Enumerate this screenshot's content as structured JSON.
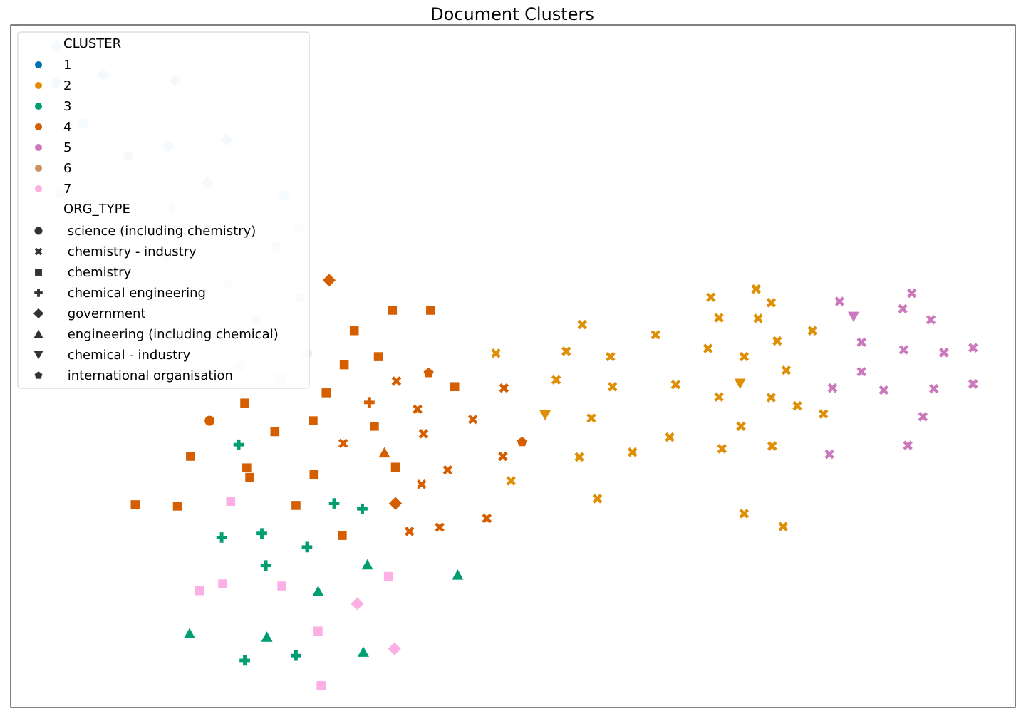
{
  "chart_data": {
    "type": "scatter",
    "title": "Document Clusters",
    "xlabel": "",
    "ylabel": "",
    "axes_ticks_visible": false,
    "grid": false,
    "legend_placement": "top-left",
    "xlim": [
      0,
      1000
    ],
    "ylim": [
      0,
      1000
    ],
    "legend": {
      "hue_title": "CLUSTER",
      "hue_entries": [
        {
          "label": "1",
          "color": "#0173b2"
        },
        {
          "label": "2",
          "color": "#de8f05"
        },
        {
          "label": "3",
          "color": "#029e73"
        },
        {
          "label": "4",
          "color": "#d55e00"
        },
        {
          "label": "5",
          "color": "#cc78bc"
        },
        {
          "label": "6",
          "color": "#ca9161"
        },
        {
          "label": "7",
          "color": "#fbafe4"
        }
      ],
      "style_title": "ORG_TYPE",
      "style_entries": [
        {
          "label": " science (including chemistry)",
          "marker": "circle"
        },
        {
          "label": " chemistry - industry",
          "marker": "x"
        },
        {
          "label": " chemistry",
          "marker": "square"
        },
        {
          "label": " chemical engineering",
          "marker": "plus"
        },
        {
          "label": " government",
          "marker": "diamond"
        },
        {
          "label": " engineering (including chemical)",
          "marker": "triangle-up"
        },
        {
          "label": " chemical - industry",
          "marker": "triangle-down"
        },
        {
          "label": " international organisation",
          "marker": "pentagon"
        }
      ]
    },
    "series": [
      {
        "name": "1",
        "color": "#0173b2",
        "faded": true,
        "points": [
          {
            "x": 46,
            "y": 969,
            "m": "diamond"
          },
          {
            "x": 92,
            "y": 927,
            "m": "diamond"
          },
          {
            "x": 164,
            "y": 919,
            "m": "diamond"
          },
          {
            "x": 215,
            "y": 832,
            "m": "diamond"
          },
          {
            "x": 196,
            "y": 768,
            "m": "diamond"
          },
          {
            "x": 45,
            "y": 915,
            "m": "circle"
          },
          {
            "x": 72,
            "y": 856,
            "m": "circle"
          },
          {
            "x": 117,
            "y": 808,
            "m": "circle"
          },
          {
            "x": 157,
            "y": 822,
            "m": "circle"
          },
          {
            "x": 272,
            "y": 750,
            "m": "circle"
          }
        ]
      },
      {
        "name": "6",
        "color": "#ca9161",
        "faded": true,
        "points": [
          {
            "x": 50,
            "y": 753,
            "m": "circle"
          },
          {
            "x": 287,
            "y": 703,
            "m": "circle"
          },
          {
            "x": 264,
            "y": 675,
            "m": "circle"
          },
          {
            "x": 155,
            "y": 661,
            "m": "circle"
          },
          {
            "x": 216,
            "y": 620,
            "m": "circle"
          },
          {
            "x": 295,
            "y": 519,
            "m": "circle"
          },
          {
            "x": 62,
            "y": 605,
            "m": "circle"
          },
          {
            "x": 94,
            "y": 673,
            "m": "circle"
          },
          {
            "x": 160,
            "y": 731,
            "m": "diamond"
          },
          {
            "x": 208,
            "y": 548,
            "m": "diamond"
          },
          {
            "x": 288,
            "y": 600,
            "m": "square"
          },
          {
            "x": 244,
            "y": 567,
            "m": "square"
          },
          {
            "x": 228,
            "y": 500,
            "m": "square"
          },
          {
            "x": 269,
            "y": 482,
            "m": "square"
          },
          {
            "x": 186,
            "y": 491,
            "m": "square"
          },
          {
            "x": 203,
            "y": 693,
            "m": "x"
          },
          {
            "x": 168,
            "y": 543,
            "m": "x"
          }
        ]
      },
      {
        "name": "4",
        "color": "#d55e00",
        "faded": false,
        "points": [
          {
            "x": 317,
            "y": 626,
            "m": "diamond"
          },
          {
            "x": 383,
            "y": 299,
            "m": "diamond"
          },
          {
            "x": 198,
            "y": 420,
            "m": "circle"
          },
          {
            "x": 416,
            "y": 490,
            "m": "pentagon"
          },
          {
            "x": 509,
            "y": 389,
            "m": "pentagon"
          },
          {
            "x": 372,
            "y": 373,
            "m": "triangle-up"
          },
          {
            "x": 357,
            "y": 447,
            "m": "plus"
          },
          {
            "x": 380,
            "y": 582,
            "m": "square"
          },
          {
            "x": 418,
            "y": 582,
            "m": "square"
          },
          {
            "x": 342,
            "y": 552,
            "m": "square"
          },
          {
            "x": 366,
            "y": 514,
            "m": "square"
          },
          {
            "x": 332,
            "y": 502,
            "m": "square"
          },
          {
            "x": 442,
            "y": 470,
            "m": "square"
          },
          {
            "x": 314,
            "y": 461,
            "m": "square"
          },
          {
            "x": 233,
            "y": 446,
            "m": "square"
          },
          {
            "x": 301,
            "y": 420,
            "m": "square"
          },
          {
            "x": 362,
            "y": 412,
            "m": "square"
          },
          {
            "x": 263,
            "y": 404,
            "m": "square"
          },
          {
            "x": 179,
            "y": 368,
            "m": "square"
          },
          {
            "x": 235,
            "y": 351,
            "m": "square"
          },
          {
            "x": 302,
            "y": 341,
            "m": "square"
          },
          {
            "x": 383,
            "y": 352,
            "m": "square"
          },
          {
            "x": 238,
            "y": 337,
            "m": "square"
          },
          {
            "x": 124,
            "y": 297,
            "m": "square"
          },
          {
            "x": 166,
            "y": 295,
            "m": "square"
          },
          {
            "x": 284,
            "y": 296,
            "m": "square"
          },
          {
            "x": 330,
            "y": 252,
            "m": "square"
          },
          {
            "x": 384,
            "y": 478,
            "m": "x"
          },
          {
            "x": 405,
            "y": 437,
            "m": "x"
          },
          {
            "x": 491,
            "y": 468,
            "m": "x"
          },
          {
            "x": 460,
            "y": 422,
            "m": "x"
          },
          {
            "x": 411,
            "y": 401,
            "m": "x"
          },
          {
            "x": 331,
            "y": 387,
            "m": "x"
          },
          {
            "x": 490,
            "y": 368,
            "m": "x"
          },
          {
            "x": 435,
            "y": 348,
            "m": "x"
          },
          {
            "x": 409,
            "y": 327,
            "m": "x"
          },
          {
            "x": 474,
            "y": 277,
            "m": "x"
          },
          {
            "x": 427,
            "y": 264,
            "m": "x"
          },
          {
            "x": 397,
            "y": 258,
            "m": "x"
          }
        ]
      },
      {
        "name": "2",
        "color": "#de8f05",
        "faded": false,
        "points": [
          {
            "x": 532,
            "y": 429,
            "m": "triangle-down"
          },
          {
            "x": 726,
            "y": 475,
            "m": "triangle-down"
          },
          {
            "x": 697,
            "y": 601,
            "m": "x"
          },
          {
            "x": 742,
            "y": 613,
            "m": "x"
          },
          {
            "x": 757,
            "y": 593,
            "m": "x"
          },
          {
            "x": 705,
            "y": 571,
            "m": "x"
          },
          {
            "x": 744,
            "y": 570,
            "m": "x"
          },
          {
            "x": 569,
            "y": 561,
            "m": "x"
          },
          {
            "x": 642,
            "y": 546,
            "m": "x"
          },
          {
            "x": 798,
            "y": 552,
            "m": "x"
          },
          {
            "x": 763,
            "y": 537,
            "m": "x"
          },
          {
            "x": 694,
            "y": 526,
            "m": "x"
          },
          {
            "x": 553,
            "y": 522,
            "m": "x"
          },
          {
            "x": 597,
            "y": 514,
            "m": "x"
          },
          {
            "x": 483,
            "y": 519,
            "m": "x"
          },
          {
            "x": 730,
            "y": 514,
            "m": "x"
          },
          {
            "x": 772,
            "y": 494,
            "m": "x"
          },
          {
            "x": 543,
            "y": 480,
            "m": "x"
          },
          {
            "x": 599,
            "y": 470,
            "m": "x"
          },
          {
            "x": 662,
            "y": 473,
            "m": "x"
          },
          {
            "x": 705,
            "y": 455,
            "m": "x"
          },
          {
            "x": 757,
            "y": 454,
            "m": "x"
          },
          {
            "x": 783,
            "y": 442,
            "m": "x"
          },
          {
            "x": 809,
            "y": 430,
            "m": "x"
          },
          {
            "x": 578,
            "y": 424,
            "m": "x"
          },
          {
            "x": 727,
            "y": 412,
            "m": "x"
          },
          {
            "x": 656,
            "y": 396,
            "m": "x"
          },
          {
            "x": 619,
            "y": 374,
            "m": "x"
          },
          {
            "x": 566,
            "y": 367,
            "m": "x"
          },
          {
            "x": 708,
            "y": 379,
            "m": "x"
          },
          {
            "x": 758,
            "y": 383,
            "m": "x"
          },
          {
            "x": 498,
            "y": 332,
            "m": "x"
          },
          {
            "x": 584,
            "y": 306,
            "m": "x"
          },
          {
            "x": 730,
            "y": 284,
            "m": "x"
          },
          {
            "x": 769,
            "y": 265,
            "m": "x"
          }
        ]
      },
      {
        "name": "5",
        "color": "#cc78bc",
        "faded": false,
        "points": [
          {
            "x": 839,
            "y": 573,
            "m": "triangle-down"
          },
          {
            "x": 825,
            "y": 595,
            "m": "x"
          },
          {
            "x": 897,
            "y": 607,
            "m": "x"
          },
          {
            "x": 888,
            "y": 584,
            "m": "x"
          },
          {
            "x": 916,
            "y": 568,
            "m": "x"
          },
          {
            "x": 847,
            "y": 535,
            "m": "x"
          },
          {
            "x": 889,
            "y": 524,
            "m": "x"
          },
          {
            "x": 929,
            "y": 520,
            "m": "x"
          },
          {
            "x": 958,
            "y": 527,
            "m": "x"
          },
          {
            "x": 847,
            "y": 492,
            "m": "x"
          },
          {
            "x": 818,
            "y": 468,
            "m": "x"
          },
          {
            "x": 869,
            "y": 465,
            "m": "x"
          },
          {
            "x": 919,
            "y": 467,
            "m": "x"
          },
          {
            "x": 958,
            "y": 474,
            "m": "x"
          },
          {
            "x": 908,
            "y": 426,
            "m": "x"
          },
          {
            "x": 815,
            "y": 371,
            "m": "x"
          },
          {
            "x": 893,
            "y": 384,
            "m": "x"
          }
        ]
      },
      {
        "name": "3",
        "color": "#029e73",
        "faded": false,
        "points": [
          {
            "x": 227,
            "y": 385,
            "m": "plus"
          },
          {
            "x": 322,
            "y": 299,
            "m": "plus"
          },
          {
            "x": 350,
            "y": 291,
            "m": "plus"
          },
          {
            "x": 210,
            "y": 249,
            "m": "plus"
          },
          {
            "x": 250,
            "y": 255,
            "m": "plus"
          },
          {
            "x": 295,
            "y": 235,
            "m": "plus"
          },
          {
            "x": 254,
            "y": 208,
            "m": "plus"
          },
          {
            "x": 233,
            "y": 69,
            "m": "plus"
          },
          {
            "x": 284,
            "y": 76,
            "m": "plus"
          },
          {
            "x": 355,
            "y": 209,
            "m": "triangle-up"
          },
          {
            "x": 445,
            "y": 194,
            "m": "triangle-up"
          },
          {
            "x": 306,
            "y": 170,
            "m": "triangle-up"
          },
          {
            "x": 178,
            "y": 108,
            "m": "triangle-up"
          },
          {
            "x": 255,
            "y": 103,
            "m": "triangle-up"
          },
          {
            "x": 351,
            "y": 81,
            "m": "triangle-up"
          }
        ]
      },
      {
        "name": "7",
        "color": "#fbafe4",
        "faded": false,
        "points": [
          {
            "x": 219,
            "y": 302,
            "m": "square"
          },
          {
            "x": 376,
            "y": 192,
            "m": "square"
          },
          {
            "x": 188,
            "y": 171,
            "m": "square"
          },
          {
            "x": 211,
            "y": 181,
            "m": "square"
          },
          {
            "x": 270,
            "y": 178,
            "m": "square"
          },
          {
            "x": 306,
            "y": 112,
            "m": "square"
          },
          {
            "x": 309,
            "y": 32,
            "m": "square"
          },
          {
            "x": 345,
            "y": 152,
            "m": "diamond"
          },
          {
            "x": 382,
            "y": 86,
            "m": "diamond"
          }
        ]
      }
    ]
  }
}
